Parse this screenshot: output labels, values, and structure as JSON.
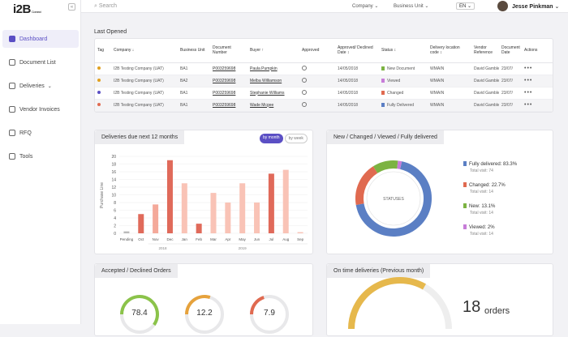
{
  "app": {
    "logo": "i2B",
    "logo_sub": "Connect",
    "collapse": "«"
  },
  "sidebar": {
    "items": [
      {
        "label": "Dashboard"
      },
      {
        "label": "Document List"
      },
      {
        "label": "Deliveries"
      },
      {
        "label": "Vendor Invoices"
      },
      {
        "label": "RFQ"
      },
      {
        "label": "Tools"
      }
    ]
  },
  "topbar": {
    "search_placeholder": "Search",
    "company": "Company",
    "business_unit": "Business Unit",
    "lang": "EN",
    "user": "Jesse Pinkman"
  },
  "last_opened": {
    "title": "Last Opened",
    "columns": [
      "Tag",
      "Company",
      "Business Unit",
      "Document Number",
      "Buyer",
      "Approved",
      "Approved/ Declined Date",
      "Status",
      "Delivery location code",
      "Vendor Reference",
      "Document Date",
      "Actions"
    ],
    "rows": [
      {
        "tag_color": "#e0a020",
        "company": "I2B Testing Company (UAT)",
        "bu": "BA1",
        "doc": "P003259698",
        "buyer": "Paula Pumpkin",
        "date": "14/05/2018",
        "status": "New Document",
        "status_color": "#7cb342",
        "loc": "WMAIN",
        "vendor": "David Gamble",
        "docdate": "23/07/"
      },
      {
        "tag_color": "#e0a020",
        "company": "I2B Testing Company (UAT)",
        "bu": "BA2",
        "doc": "P003259698",
        "buyer": "Melba Williamson",
        "date": "14/05/2018",
        "status": "Viewed",
        "status_color": "#c77dd8",
        "loc": "WMAIN",
        "vendor": "David Gamble",
        "docdate": "23/07/"
      },
      {
        "tag_color": "#5b4fc4",
        "company": "I2B Testing Company (UAT)",
        "bu": "BA1",
        "doc": "P003259698",
        "buyer": "Stephanie Williams",
        "date": "14/05/2018",
        "status": "Changed",
        "status_color": "#e06a50",
        "loc": "WMAIN",
        "vendor": "David Gamble",
        "docdate": "23/07/"
      },
      {
        "tag_color": "#e06a50",
        "company": "I2B Testing Company (UAT)",
        "bu": "BA1",
        "doc": "P003259698",
        "buyer": "Wade Mcgee",
        "date": "14/05/2018",
        "status": "Fully Delivered",
        "status_color": "#5b7fc4",
        "loc": "WMAIN",
        "vendor": "David Gamble",
        "docdate": "23/07/"
      }
    ],
    "actions_label": "•••"
  },
  "deliveries_card": {
    "title": "Deliveries due next 12 months",
    "toggle_on": "by month",
    "toggle_off": "by week"
  },
  "chart_data": [
    {
      "type": "bar",
      "title": "Deliveries due next 12 months",
      "ylabel": "Purchase Line",
      "ylim": [
        0,
        20
      ],
      "yticks": [
        0,
        2,
        4,
        6,
        8,
        10,
        12,
        14,
        16,
        18,
        20
      ],
      "categories": [
        "Pending",
        "Oct",
        "Nov",
        "Dec",
        "Jan",
        "Feb",
        "Mar",
        "Apr",
        "May",
        "Jun",
        "Jul",
        "Aug",
        "Sep"
      ],
      "values": [
        0.5,
        5,
        7.5,
        19,
        13,
        2.5,
        10.5,
        8,
        13,
        8,
        15.5,
        16.5,
        0.3
      ],
      "colors": [
        "#bbbbbb",
        "#e06a5a",
        "#f4a99a",
        "#e06a5a",
        "#f9c3b6",
        "#e06a5a",
        "#f9c3b6",
        "#f9c3b6",
        "#f9c3b6",
        "#f9c3b6",
        "#e06a5a",
        "#f9c3b6",
        "#f9c3b6"
      ],
      "year_labels": [
        "2018",
        "2019"
      ]
    },
    {
      "type": "pie",
      "title": "New / Changed / Viewed / Fully delivered",
      "center_label": "STATUSES",
      "slices": [
        {
          "name": "Fully delivered",
          "value": 83.3,
          "label": "Fully delivered: 83.3%",
          "sub": "Total visit: 74",
          "color": "#5b7fc4"
        },
        {
          "name": "Changed",
          "value": 22.7,
          "label": "Changed: 22.7%",
          "sub": "Total visit: 14",
          "color": "#e06a50"
        },
        {
          "name": "New",
          "value": 13.1,
          "label": "New: 13.1%",
          "sub": "Total visit: 14",
          "color": "#7cb342"
        },
        {
          "name": "Viewed",
          "value": 2,
          "label": "Viewed: 2%",
          "sub": "Total visit: 14",
          "color": "#c77dd8"
        }
      ]
    }
  ],
  "accepted_card": {
    "title": "Accepted / Declined Orders",
    "gauges": [
      {
        "value": "78.4",
        "fraction": 0.6,
        "color": "#8bc34a"
      },
      {
        "value": "12.2",
        "fraction": 0.3,
        "color": "#e6a23c"
      },
      {
        "value": "7.9",
        "fraction": 0.2,
        "color": "#e06a50"
      }
    ]
  },
  "ontime_card": {
    "title": "On time deliveries (Previous month)",
    "count": "18",
    "unit": "orders"
  }
}
